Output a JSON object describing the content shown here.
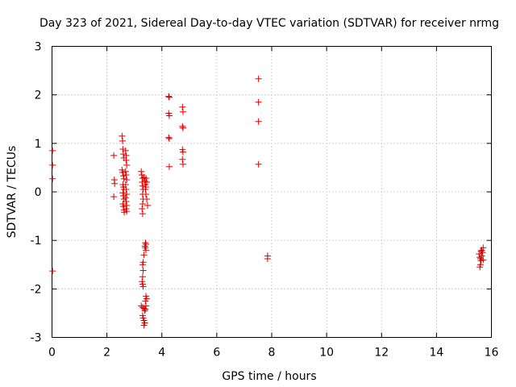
{
  "chart_data": {
    "type": "scatter",
    "title": "Day 323 of 2021, Sidereal Day-to-day VTEC variation (SDTVAR) for receiver nrmg",
    "xlabel": "GPS time / hours",
    "ylabel": "SDTVAR / TECUs",
    "xlim": [
      0,
      16
    ],
    "ylim": [
      -3,
      3
    ],
    "xticks": [
      0,
      2,
      4,
      6,
      8,
      10,
      12,
      14,
      16
    ],
    "yticks": [
      -3,
      -2,
      -1,
      0,
      1,
      2,
      3
    ],
    "xtick_labels": [
      "0",
      "2",
      "4",
      "6",
      "8",
      "10",
      "12",
      "14",
      "16"
    ],
    "ytick_labels": [
      "-3",
      "-2",
      "-1",
      "0",
      "1",
      "2",
      "3"
    ],
    "grid": true,
    "marker": "+",
    "color": "#e00000",
    "points": [
      [
        0.02,
        0.85
      ],
      [
        0.02,
        0.55
      ],
      [
        0.02,
        0.27
      ],
      [
        0.02,
        -1.63
      ],
      [
        2.25,
        0.75
      ],
      [
        2.27,
        0.25
      ],
      [
        2.28,
        0.17
      ],
      [
        2.25,
        -0.1
      ],
      [
        2.55,
        1.15
      ],
      [
        2.57,
        1.05
      ],
      [
        2.58,
        0.88
      ],
      [
        2.6,
        0.78
      ],
      [
        2.62,
        0.7
      ],
      [
        2.55,
        0.45
      ],
      [
        2.57,
        0.4
      ],
      [
        2.6,
        0.33
      ],
      [
        2.62,
        0.27
      ],
      [
        2.58,
        0.15
      ],
      [
        2.6,
        0.1
      ],
      [
        2.62,
        0.05
      ],
      [
        2.58,
        -0.02
      ],
      [
        2.6,
        -0.08
      ],
      [
        2.62,
        -0.15
      ],
      [
        2.58,
        -0.25
      ],
      [
        2.6,
        -0.3
      ],
      [
        2.62,
        -0.37
      ],
      [
        2.63,
        -0.42
      ],
      [
        2.68,
        0.85
      ],
      [
        2.7,
        0.75
      ],
      [
        2.7,
        0.65
      ],
      [
        2.72,
        0.55
      ],
      [
        2.68,
        0.42
      ],
      [
        2.7,
        0.35
      ],
      [
        2.72,
        0.25
      ],
      [
        2.68,
        0.15
      ],
      [
        2.7,
        0.05
      ],
      [
        2.72,
        -0.05
      ],
      [
        2.68,
        -0.12
      ],
      [
        2.7,
        -0.2
      ],
      [
        2.72,
        -0.28
      ],
      [
        2.7,
        -0.35
      ],
      [
        2.72,
        -0.4
      ],
      [
        3.25,
        0.42
      ],
      [
        3.27,
        0.35
      ],
      [
        3.3,
        0.28
      ],
      [
        3.28,
        0.2
      ],
      [
        3.3,
        0.12
      ],
      [
        3.32,
        0.05
      ],
      [
        3.3,
        -0.05
      ],
      [
        3.32,
        -0.15
      ],
      [
        3.3,
        -0.25
      ],
      [
        3.28,
        -0.35
      ],
      [
        3.3,
        -0.45
      ],
      [
        3.35,
        0.3
      ],
      [
        3.38,
        0.22
      ],
      [
        3.4,
        0.15
      ],
      [
        3.42,
        0.1
      ],
      [
        3.45,
        0.2
      ],
      [
        3.42,
        0.28
      ],
      [
        3.4,
        0.05
      ],
      [
        3.42,
        -0.05
      ],
      [
        3.45,
        -0.15
      ],
      [
        3.48,
        -0.28
      ],
      [
        3.4,
        -1.05
      ],
      [
        3.42,
        -1.08
      ],
      [
        3.38,
        -1.12
      ],
      [
        3.4,
        -1.15
      ],
      [
        3.42,
        -1.2
      ],
      [
        3.35,
        -1.3
      ],
      [
        3.32,
        -1.45
      ],
      [
        3.3,
        -1.5
      ],
      [
        3.32,
        -1.62
      ],
      [
        3.3,
        -1.75
      ],
      [
        3.28,
        -1.85
      ],
      [
        3.3,
        -1.9
      ],
      [
        3.32,
        -1.95
      ],
      [
        3.25,
        -2.35
      ],
      [
        3.3,
        -2.38
      ],
      [
        3.35,
        -2.4
      ],
      [
        3.3,
        -2.55
      ],
      [
        3.32,
        -2.6
      ],
      [
        3.35,
        -2.65
      ],
      [
        3.38,
        -2.7
      ],
      [
        3.35,
        -2.75
      ],
      [
        3.42,
        -2.15
      ],
      [
        3.45,
        -2.2
      ],
      [
        3.4,
        -2.25
      ],
      [
        3.42,
        -2.35
      ],
      [
        3.4,
        -2.42
      ],
      [
        3.38,
        -2.45
      ],
      [
        4.25,
        1.97
      ],
      [
        4.27,
        1.95
      ],
      [
        4.25,
        1.62
      ],
      [
        4.27,
        1.57
      ],
      [
        4.25,
        1.12
      ],
      [
        4.27,
        1.1
      ],
      [
        4.27,
        0.52
      ],
      [
        4.75,
        1.75
      ],
      [
        4.77,
        1.65
      ],
      [
        4.75,
        1.35
      ],
      [
        4.77,
        1.32
      ],
      [
        4.75,
        0.87
      ],
      [
        4.77,
        0.82
      ],
      [
        4.75,
        0.67
      ],
      [
        4.77,
        0.57
      ],
      [
        7.52,
        2.33
      ],
      [
        7.52,
        1.85
      ],
      [
        7.52,
        1.45
      ],
      [
        7.52,
        0.57
      ],
      [
        7.85,
        -1.32
      ],
      [
        7.85,
        -1.38
      ],
      [
        15.55,
        -1.28
      ],
      [
        15.58,
        -1.35
      ],
      [
        15.6,
        -1.38
      ],
      [
        15.62,
        -1.42
      ],
      [
        15.6,
        -1.5
      ],
      [
        15.58,
        -1.55
      ],
      [
        15.65,
        -1.2
      ],
      [
        15.68,
        -1.25
      ],
      [
        15.7,
        -1.15
      ],
      [
        15.65,
        -1.32
      ],
      [
        15.7,
        -1.4
      ],
      [
        15.62,
        -1.22
      ]
    ]
  }
}
